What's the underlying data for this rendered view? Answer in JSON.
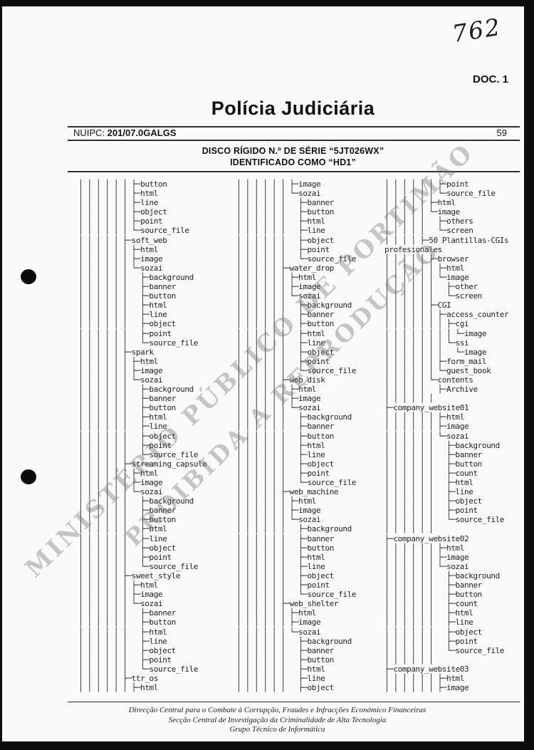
{
  "page": {
    "handwritten_number": "762",
    "doc_label": "DOC. 1",
    "title": "Polícia Judiciária",
    "nuipc_label": "NUIPC: ",
    "nuipc_value": "201/07.0GALGS",
    "page_number": "59",
    "subtitle_line1": "DISCO RÍGIDO N.º DE SÉRIE “5JT026WX”",
    "subtitle_line2": "IDENTIFICADO COMO “HD1”",
    "watermark_line1": "MINISTÉRIO PÚBLICO DE PORTIMÃO",
    "watermark_line2": "PROIBIDA A REPRODUÇÃO",
    "footer_line1": "Direcção Central para o Combate à Corrupção, Fraudes e Infracções Económico Financeiras",
    "footer_line2": "Secção Central de Investigação da Criminalidade de Alta Tecnologia",
    "footer_line3": "Grupo Técnico de Informática"
  },
  "tree": {
    "columns": [
      {
        "lines": [
          "│ │ │ │ │ │ ├─button",
          "│ │ │ │ │ │ ├─html",
          "│ │ │ │ │ │ ├─line",
          "│ │ │ │ │ │ ├─object",
          "│ │ │ │ │ │ ├─point",
          "│ │ │ │ │ │ └─source_file",
          "│ │ │ │ │ ├─soft_web",
          "│ │ │ │ │ │ ├─html",
          "│ │ │ │ │ │ ├─image",
          "│ │ │ │ │ │ └─sozai",
          "│ │ │ │ │ │   ├─background",
          "│ │ │ │ │ │   ├─banner",
          "│ │ │ │ │ │   ├─button",
          "│ │ │ │ │ │   ├─html",
          "│ │ │ │ │ │   ├─line",
          "│ │ │ │ │ │   ├─object",
          "│ │ │ │ │ │   ├─point",
          "│ │ │ │ │ │   └─source_file",
          "│ │ │ │ │ ├─spark",
          "│ │ │ │ │ │ ├─html",
          "│ │ │ │ │ │ ├─image",
          "│ │ │ │ │ │ └─sozai",
          "│ │ │ │ │ │   ├─background",
          "│ │ │ │ │ │   ├─banner",
          "│ │ │ │ │ │   ├─button",
          "│ │ │ │ │ │   ├─html",
          "│ │ │ │ │ │   ├─line",
          "│ │ │ │ │ │   ├─object",
          "│ │ │ │ │ │   ├─point",
          "│ │ │ │ │ │   └─source_file",
          "│ │ │ │ │ ├─streaming_capsule",
          "│ │ │ │ │ │ ├─html",
          "│ │ │ │ │ │ ├─image",
          "│ │ │ │ │ │ └─sozai",
          "│ │ │ │ │ │   ├─background",
          "│ │ │ │ │ │   ├─banner",
          "│ │ │ │ │ │   ├─button",
          "│ │ │ │ │ │   ├─html",
          "│ │ │ │ │ │   ├─line",
          "│ │ │ │ │ │   ├─object",
          "│ │ │ │ │ │   ├─point",
          "│ │ │ │ │ │   └─source_file",
          "│ │ │ │ │ ├─sweet_style",
          "│ │ │ │ │ │ ├─html",
          "│ │ │ │ │ │ ├─image",
          "│ │ │ │ │ │ └─sozai",
          "│ │ │ │ │ │   ├─banner",
          "│ │ │ │ │ │   ├─button",
          "│ │ │ │ │ │   ├─html",
          "│ │ │ │ │ │   ├─line",
          "│ │ │ │ │ │   ├─object",
          "│ │ │ │ │ │   ├─point",
          "│ │ │ │ │ │   └─source_file",
          "│ │ │ │ │ ├─ttr_os",
          "│ │ │ │ │ │ ├─html"
        ]
      },
      {
        "lines": [
          "│ │ │ │ │ │ ├─image",
          "│ │ │ │ │ │ └─sozai",
          "│ │ │ │ │ │   ├─banner",
          "│ │ │ │ │ │   ├─button",
          "│ │ │ │ │ │   ├─html",
          "│ │ │ │ │ │   ├─line",
          "│ │ │ │ │ │   ├─object",
          "│ │ │ │ │ │   ├─point",
          "│ │ │ │ │ │   └─source_file",
          "│ │ │ │ │ ├─water_drop",
          "│ │ │ │ │ │ ├─html",
          "│ │ │ │ │ │ ├─image",
          "│ │ │ │ │ │ └─sozai",
          "│ │ │ │ │ │   ├─background",
          "│ │ │ │ │ │   ├─banner",
          "│ │ │ │ │ │   ├─button",
          "│ │ │ │ │ │   ├─html",
          "│ │ │ │ │ │   ├─line",
          "│ │ │ │ │ │   ├─object",
          "│ │ │ │ │ │   ├─point",
          "│ │ │ │ │ │   └─source_file",
          "│ │ │ │ │ ├─web_disk",
          "│ │ │ │ │ │ ├─html",
          "│ │ │ │ │ │ ├─image",
          "│ │ │ │ │ │ └─sozai",
          "│ │ │ │ │ │   ├─background",
          "│ │ │ │ │ │   ├─banner",
          "│ │ │ │ │ │   ├─button",
          "│ │ │ │ │ │   ├─html",
          "│ │ │ │ │ │   ├─line",
          "│ │ │ │ │ │   ├─object",
          "│ │ │ │ │ │   ├─point",
          "│ │ │ │ │ │   └─source_file",
          "│ │ │ │ │ ├─web_machine",
          "│ │ │ │ │ │ ├─html",
          "│ │ │ │ │ │ ├─image",
          "│ │ │ │ │ │ └─sozai",
          "│ │ │ │ │ │   ├─background",
          "│ │ │ │ │ │   ├─banner",
          "│ │ │ │ │ │   ├─button",
          "│ │ │ │ │ │   ├─html",
          "│ │ │ │ │ │   ├─line",
          "│ │ │ │ │ │   ├─object",
          "│ │ │ │ │ │   ├─point",
          "│ │ │ │ │ │   └─source_file",
          "│ │ │ │ │ ├─web_shelter",
          "│ │ │ │ │ │ ├─html",
          "│ │ │ │ │ │ ├─image",
          "│ │ │ │ │ │ └─sozai",
          "│ │ │ │ │ │   ├─background",
          "│ │ │ │ │ │   ├─banner",
          "│ │ │ │ │ │   ├─button",
          "│ │ │ │ │ │   ├─html",
          "│ │ │ │ │ │   ├─line",
          "│ │ │ │ │ │   ├─object"
        ]
      },
      {
        "lines": [
          "│ │ │ │ │ │ ├─point",
          "│ │ │ │ │ │ └─source_file",
          "│ │ │ │ │ ├─html",
          "│ │ │ │ │ └─image",
          "│ │ │ │ │   ├─others",
          "│ │ │ │ │   └─screen",
          "│ │ │ │ ├─50 Plantillas-CGIs",
          "profesionales",
          "│ │ │ │ │ ├─browser",
          "│ │ │ │ │ │ ├─html",
          "│ │ │ │ │ │ └─image",
          "│ │ │ │ │ │   ├─other",
          "│ │ │ │ │ │   └─screen",
          "│ │ │ │ │ ├─CGI",
          "│ │ │ │ │ │ ├─access_counter",
          "│ │ │ │ │ │ │ ├─cgi",
          "│ │ │ │ │ │ │ │ └─image",
          "│ │ │ │ │ │ │ └─ssi",
          "│ │ │ │ │ │ │   └─image",
          "│ │ │ │ │ │ ├─form_mail",
          "│ │ │ │ │ │ └─guest_book",
          "│ │ │ │ │ └─contents",
          "│ │ │ │ │   ├─Archive",
          "│ │ │ │ │ │",
          "├─company_website01",
          "│ │ │ │ │ │ ├─html",
          "│ │ │ │ │ │ ├─image",
          "│ │ │ │ │ │ └─sozai",
          "│ │ │ │ │ │   ├─background",
          "│ │ │ │ │ │   ├─banner",
          "│ │ │ │ │ │   ├─button",
          "│ │ │ │ │ │   ├─count",
          "│ │ │ │ │ │   ├─html",
          "│ │ │ │ │ │   ├─line",
          "│ │ │ │ │ │   ├─object",
          "│ │ │ │ │ │   ├─point",
          "│ │ │ │ │ │   └─source_file",
          "│ │ │ │ │ │",
          "├─company_website02",
          "│ │ │ │ │ │ ├─html",
          "│ │ │ │ │ │ ├─image",
          "│ │ │ │ │ │ └─sozai",
          "│ │ │ │ │ │   ├─background",
          "│ │ │ │ │ │   ├─banner",
          "│ │ │ │ │ │   ├─button",
          "│ │ │ │ │ │   ├─count",
          "│ │ │ │ │ │   ├─html",
          "│ │ │ │ │ │   ├─line",
          "│ │ │ │ │ │   ├─object",
          "│ │ │ │ │ │   ├─point",
          "│ │ │ │ │ │   └─source_file",
          "│ │ │ │ │ │",
          "├─company_website03",
          "│ │ │ │ │ │ ├─html",
          "│ │ │ │ │ │ ├─image"
        ]
      }
    ]
  }
}
